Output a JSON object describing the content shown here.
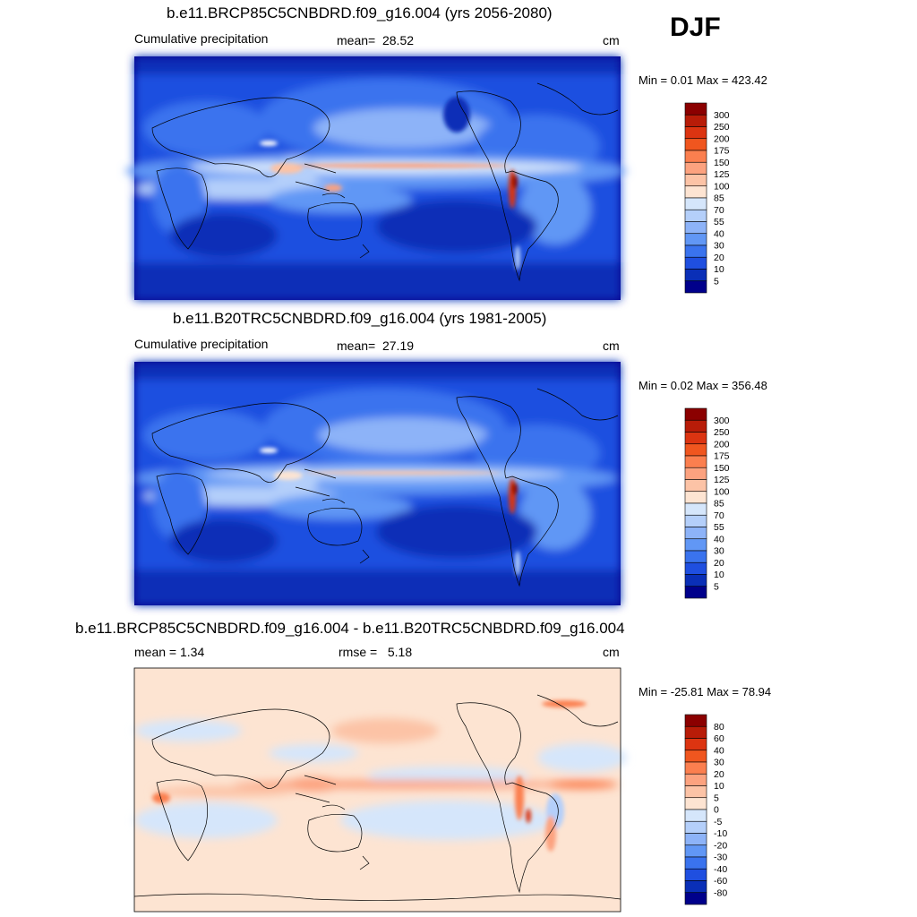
{
  "season": "DJF",
  "panels": [
    {
      "title": "b.e11.BRCP85C5CNBDRD.f09_g16.004 (yrs 2056-2080)",
      "left_label": "Cumulative precipitation",
      "mean_label": "mean=",
      "mean_value": "28.52",
      "units": "cm",
      "min_max": "Min =   0.01 Max = 423.42"
    },
    {
      "title": "b.e11.B20TRC5CNBDRD.f09_g16.004 (yrs 1981-2005)",
      "left_label": "Cumulative precipitation",
      "mean_label": "mean=",
      "mean_value": "27.19",
      "units": "cm",
      "min_max": "Min =   0.02 Max = 356.48"
    },
    {
      "title": "b.e11.BRCP85C5CNBDRD.f09_g16.004 - b.e11.B20TRC5CNBDRD.f09_g16.004",
      "left_label": "mean =   1.34",
      "mean_label": "rmse =",
      "mean_value": "5.18",
      "units": "cm",
      "min_max": "Min = -25.81 Max =  78.94"
    }
  ],
  "chart_data": [
    {
      "type": "heatmap",
      "title": "b.e11.BRCP85C5CNBDRD.f09_g16.004 (yrs 2056-2080)",
      "subtitle": "Cumulative precipitation",
      "units": "cm",
      "mean": 28.52,
      "min": 0.01,
      "max": 423.42,
      "colorbar": {
        "levels": [
          "300",
          "250",
          "200",
          "175",
          "150",
          "125",
          "100",
          "85",
          "70",
          "55",
          "40",
          "30",
          "20",
          "10",
          "5"
        ],
        "colors": [
          "#8b0000",
          "#b81c08",
          "#dc3411",
          "#f0561f",
          "#fb7f4f",
          "#fca27f",
          "#fcc3a6",
          "#fde4d2",
          "#d5e6fb",
          "#b4cffa",
          "#8db3f8",
          "#6197f5",
          "#3a73ee",
          "#1f4fe0",
          "#0a2fb7",
          "#00008b"
        ]
      }
    },
    {
      "type": "heatmap",
      "title": "b.e11.B20TRC5CNBDRD.f09_g16.004 (yrs 1981-2005)",
      "subtitle": "Cumulative precipitation",
      "units": "cm",
      "mean": 27.19,
      "min": 0.02,
      "max": 356.48,
      "colorbar": {
        "levels": [
          "300",
          "250",
          "200",
          "175",
          "150",
          "125",
          "100",
          "85",
          "70",
          "55",
          "40",
          "30",
          "20",
          "10",
          "5"
        ],
        "colors": [
          "#8b0000",
          "#b81c08",
          "#dc3411",
          "#f0561f",
          "#fb7f4f",
          "#fca27f",
          "#fcc3a6",
          "#fde4d2",
          "#d5e6fb",
          "#b4cffa",
          "#8db3f8",
          "#6197f5",
          "#3a73ee",
          "#1f4fe0",
          "#0a2fb7",
          "#00008b"
        ]
      }
    },
    {
      "type": "heatmap",
      "title": "b.e11.BRCP85C5CNBDRD.f09_g16.004 - b.e11.B20TRC5CNBDRD.f09_g16.004",
      "units": "cm",
      "mean": 1.34,
      "rmse": 5.18,
      "min": -25.81,
      "max": 78.94,
      "colorbar": {
        "levels": [
          "80",
          "60",
          "40",
          "30",
          "20",
          "10",
          "5",
          "0",
          "-5",
          "-10",
          "-20",
          "-30",
          "-40",
          "-60",
          "-80"
        ],
        "colors": [
          "#8b0000",
          "#b81c08",
          "#dc3411",
          "#f0561f",
          "#fb7f4f",
          "#fca27f",
          "#fcc3a6",
          "#fde4d2",
          "#d5e6fb",
          "#b4cffa",
          "#8db3f8",
          "#6197f5",
          "#3a73ee",
          "#1f4fe0",
          "#0a2fb7",
          "#00008b"
        ]
      }
    }
  ]
}
